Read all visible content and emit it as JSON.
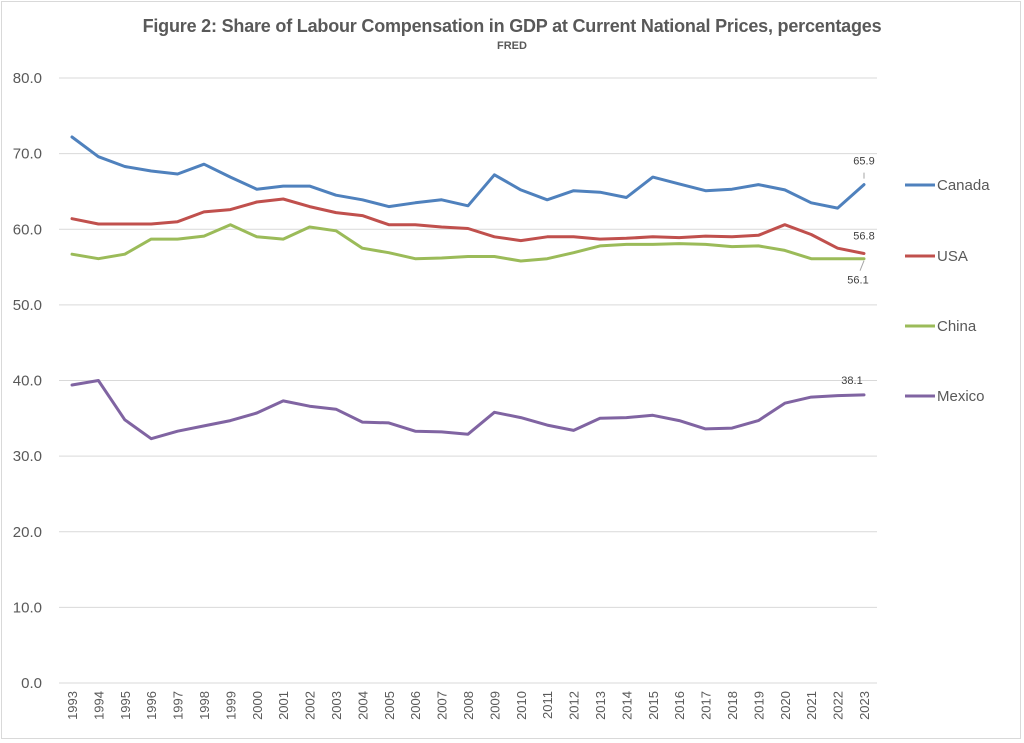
{
  "chart_data": {
    "type": "line",
    "title": "Figure 2: Share of Labour Compensation in GDP at Current National Prices, percentages",
    "subtitle": "FRED",
    "xlabel": "",
    "ylabel": "",
    "ylim": [
      0,
      80
    ],
    "yticks": [
      "0.0",
      "10.0",
      "20.0",
      "30.0",
      "40.0",
      "50.0",
      "60.0",
      "70.0",
      "80.0"
    ],
    "grid": true,
    "legend_position": "right",
    "x": [
      "1993",
      "1994",
      "1995",
      "1996",
      "1997",
      "1998",
      "1999",
      "2000",
      "2001",
      "2002",
      "2003",
      "2004",
      "2005",
      "2006",
      "2007",
      "2008",
      "2009",
      "2010",
      "2011",
      "2012",
      "2013",
      "2014",
      "2015",
      "2016",
      "2017",
      "2018",
      "2019",
      "2020",
      "2021",
      "2022",
      "2023"
    ],
    "series": [
      {
        "name": "Canada",
        "color": "#4f81bd",
        "values": [
          72.2,
          69.6,
          68.3,
          67.7,
          67.3,
          68.6,
          66.9,
          65.3,
          65.7,
          65.7,
          64.5,
          63.9,
          63.0,
          63.5,
          63.9,
          63.1,
          67.2,
          65.2,
          63.9,
          65.1,
          64.9,
          64.2,
          66.9,
          66.0,
          65.1,
          65.3,
          65.9,
          65.2,
          63.5,
          62.8,
          65.9
        ],
        "end_label": "65.9"
      },
      {
        "name": "USA",
        "color": "#c0504d",
        "values": [
          61.4,
          60.7,
          60.7,
          60.7,
          61.0,
          62.3,
          62.6,
          63.6,
          64.0,
          63.0,
          62.2,
          61.8,
          60.6,
          60.6,
          60.3,
          60.1,
          59.0,
          58.5,
          59.0,
          59.0,
          58.7,
          58.8,
          59.0,
          58.9,
          59.1,
          59.0,
          59.2,
          60.6,
          59.3,
          57.5,
          56.8
        ],
        "end_label": "56.8"
      },
      {
        "name": "China",
        "color": "#9bbb59",
        "values": [
          56.7,
          56.1,
          56.7,
          58.7,
          58.7,
          59.1,
          60.6,
          59.0,
          58.7,
          60.3,
          59.8,
          57.5,
          56.9,
          56.1,
          56.2,
          56.4,
          56.4,
          55.8,
          56.1,
          56.9,
          57.8,
          58.0,
          58.0,
          58.1,
          58.0,
          57.7,
          57.8,
          57.2,
          56.1,
          56.1,
          56.1
        ],
        "end_label": "56.1"
      },
      {
        "name": "Mexico",
        "color": "#8064a2",
        "values": [
          39.4,
          40.0,
          34.8,
          32.3,
          33.3,
          34.0,
          34.7,
          35.7,
          37.3,
          36.6,
          36.2,
          34.5,
          34.4,
          33.3,
          33.2,
          32.9,
          35.8,
          35.1,
          34.1,
          33.4,
          35.0,
          35.1,
          35.4,
          34.7,
          33.6,
          33.7,
          34.7,
          37.0,
          37.8,
          38.0,
          38.1
        ],
        "end_label": "38.1"
      }
    ]
  }
}
